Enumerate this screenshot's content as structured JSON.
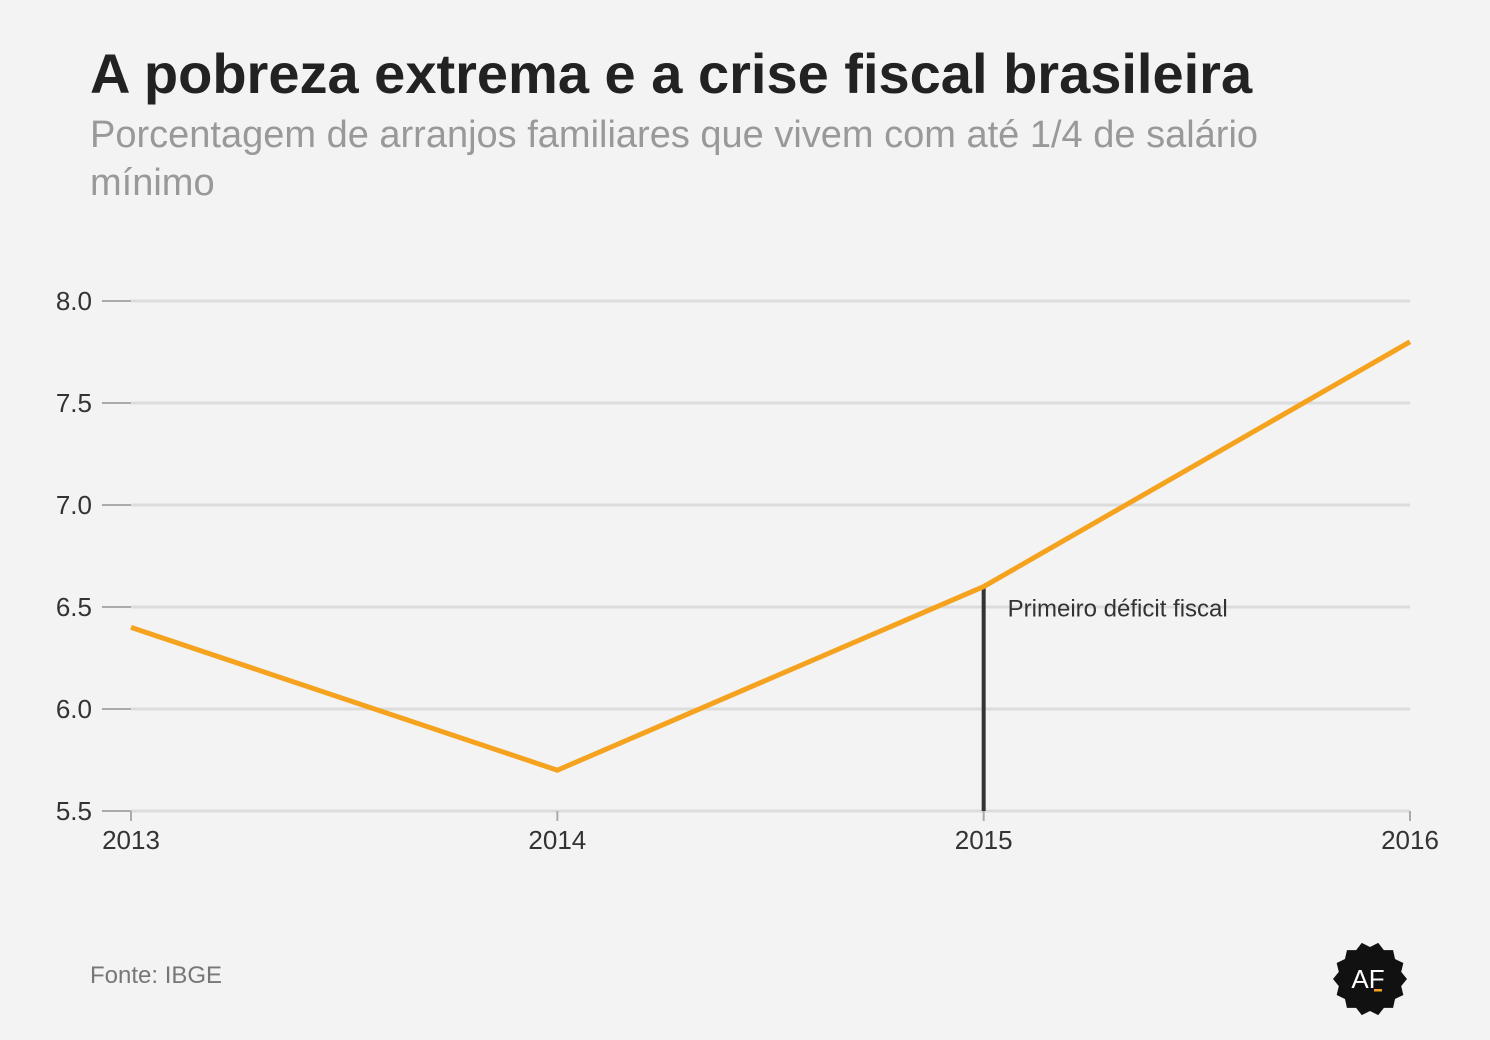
{
  "title": "A pobreza extrema e a crise fiscal brasileira",
  "subtitle": "Porcentagem de arranjos familiares que vivem com até 1/4 de salário mínimo",
  "source": "Fonte: IBGE",
  "logo_text": "AF",
  "colors": {
    "background": "#f3f3f3",
    "line": "#f5a31f",
    "grid": "#dcdcdc",
    "annotation": "#333333"
  },
  "chart_data": {
    "type": "line",
    "title": "A pobreza extrema e a crise fiscal brasileira",
    "subtitle": "Porcentagem de arranjos familiares que vivem com até 1/4 de salário mínimo",
    "x": [
      "2013",
      "2014",
      "2015",
      "2016"
    ],
    "series": [
      {
        "values": [
          6.4,
          5.7,
          6.6,
          7.8
        ]
      }
    ],
    "xlabel": "",
    "ylabel": "",
    "ylim": [
      5.5,
      8.0
    ],
    "y_ticks": [
      "5.5",
      "6.0",
      "6.5",
      "7.0",
      "7.5",
      "8.0"
    ],
    "grid": true,
    "legend": "none",
    "annotations": [
      {
        "x": "2015",
        "text": "Primeiro déficit fiscal"
      }
    ]
  }
}
